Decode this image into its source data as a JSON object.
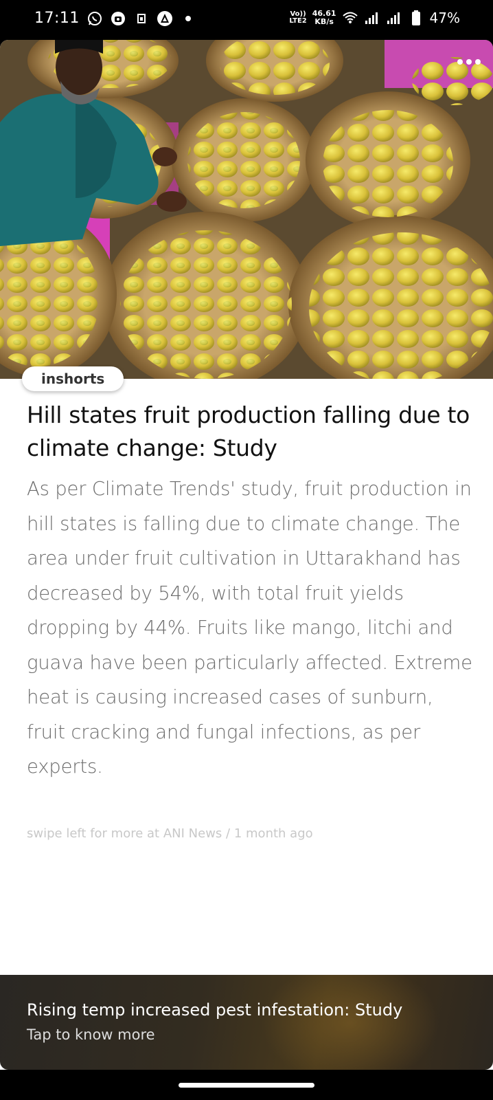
{
  "status_bar": {
    "time": "17:11",
    "left_icons": [
      "whatsapp-icon",
      "camera-app-icon",
      "sim-card-icon",
      "triangle-app-icon",
      "dot-icon"
    ],
    "volte_top": "Vo))",
    "volte_bottom": "LTE2",
    "net_speed_value": "46.61",
    "net_speed_unit": "KB/s",
    "battery": "47%"
  },
  "article": {
    "source_pill": "inshorts",
    "headline": "Hill states fruit production falling due to climate change: Study",
    "body": "As per Climate Trends' study, fruit production in hill states is falling due to climate change. The area under fruit cultivation in Uttarakhand has decreased by 54%, with total fruit yields dropping by 44%. Fruits like mango, litchi and guava have been particularly affected. Extreme heat is causing increased cases of sunburn, fruit cracking and fungal infections, as per experts.",
    "byline_prefix": "swipe left for more at",
    "byline_source": "ANI News",
    "byline_separator": "/",
    "byline_time": "1 month ago"
  },
  "bottom_card": {
    "title": "Rising temp increased pest infestation: Study",
    "subtitle": "Tap to know more"
  },
  "colors": {
    "headline": "#111111",
    "body": "#6b6b6b",
    "byline": "#c8c8c8",
    "bottom_bg": "#2a2723"
  }
}
